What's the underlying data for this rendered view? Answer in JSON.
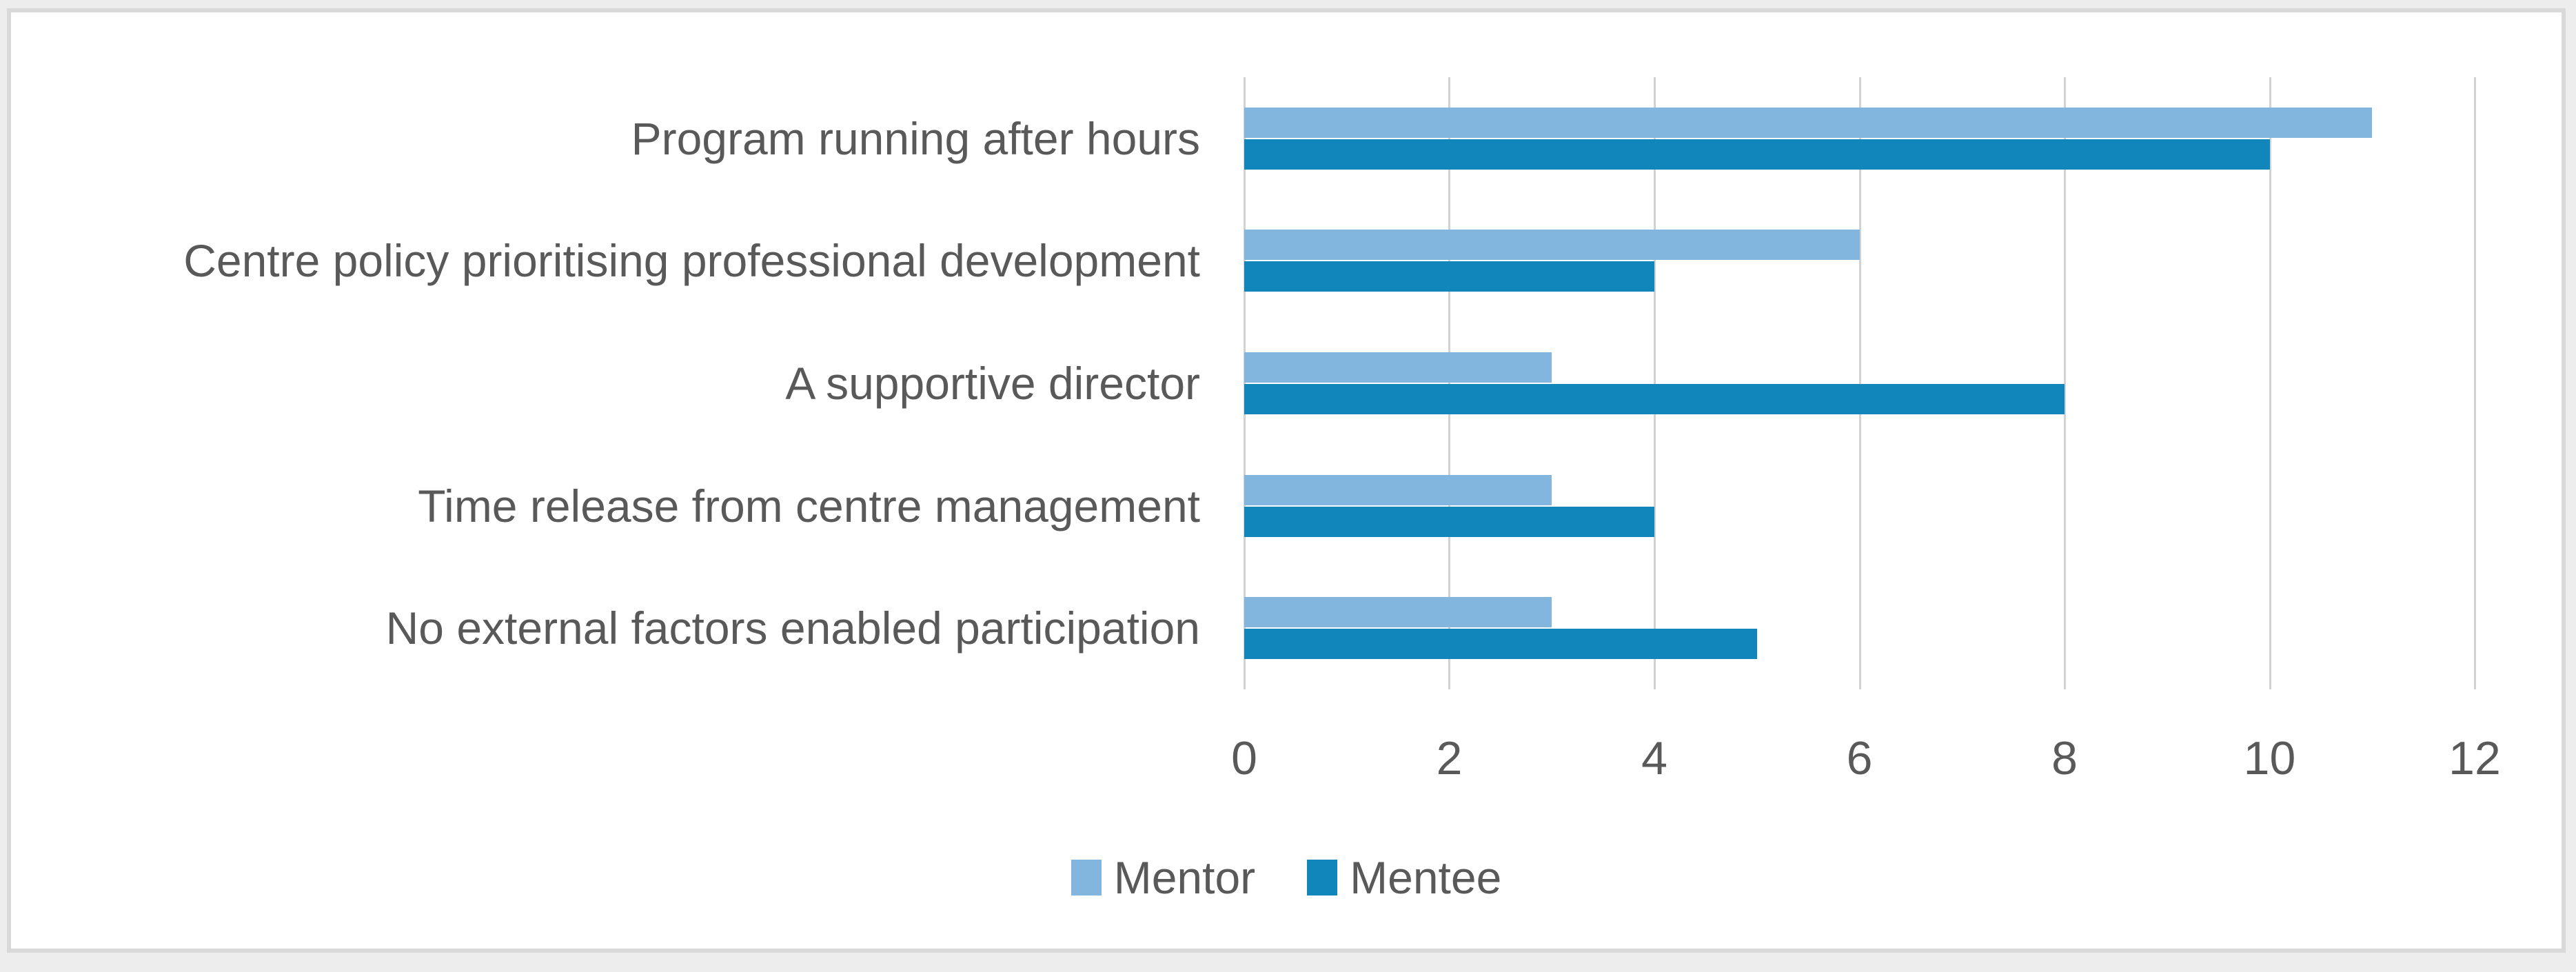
{
  "chart_data": {
    "type": "bar",
    "orientation": "horizontal",
    "title": "",
    "categories": [
      "Program running after hours",
      "Centre policy prioritising professional development",
      "A supportive director",
      "Time release from centre management",
      "No external factors enabled participation"
    ],
    "series": [
      {
        "name": "Mentor",
        "color": "#83B6DF",
        "values": [
          11,
          6,
          3,
          3,
          3
        ]
      },
      {
        "name": "Mentee",
        "color": "#1186BB",
        "values": [
          10,
          4,
          8,
          4,
          5
        ]
      }
    ],
    "xlim": [
      0,
      12
    ],
    "x_ticks": [
      0,
      2,
      4,
      6,
      8,
      10,
      12
    ],
    "grid": "vertical-major-gridlines",
    "legend_position": "bottom",
    "bar_order_in_group": [
      "Mentor",
      "Mentee"
    ]
  },
  "legend": {
    "items": [
      {
        "label": "Mentor",
        "color": "#83B6DF"
      },
      {
        "label": "Mentee",
        "color": "#1186BB"
      }
    ]
  },
  "colors": {
    "mentor": "#83B6DF",
    "mentee": "#1186BB",
    "grid": "#D2D2D2",
    "text": "#595959",
    "frame_border": "#D9D9D9",
    "chart_background": "#FFFFFF",
    "page_background": "#EDEDED"
  }
}
